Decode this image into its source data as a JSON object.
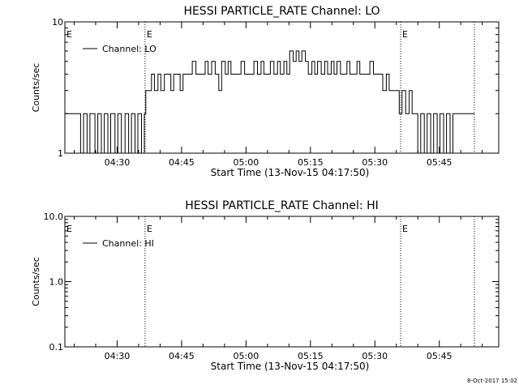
{
  "footer_stamp": "8-Oct-2017 15:02",
  "chart_data": [
    {
      "type": "line",
      "title": "HESSI PARTICLE_RATE Channel: LO",
      "xlabel": "Start Time (13-Nov-15 04:17:50)",
      "ylabel": "Counts/sec",
      "yscale": "log",
      "xlim": [
        "04:17:50",
        "05:58:50"
      ],
      "ylim": [
        1,
        10
      ],
      "x_ticks": [
        "04:30",
        "04:45",
        "05:00",
        "05:15",
        "05:30",
        "05:45"
      ],
      "y_ticks": [
        {
          "value": 10,
          "label": "10"
        },
        {
          "value": 1,
          "label": "1"
        }
      ],
      "legend": {
        "position": "top-left",
        "entries": [
          "Channel: LO"
        ]
      },
      "event_markers": [
        {
          "time": "04:36:30",
          "label": "E"
        },
        {
          "time": "05:36:00",
          "label": "E"
        },
        {
          "time": "05:53:10",
          "label": ""
        }
      ],
      "series": [
        {
          "name": "Channel: LO",
          "points": [
            [
              "04:17:50",
              2
            ],
            [
              "04:21:00",
              2
            ],
            [
              "04:21:30",
              1
            ],
            [
              "04:22:10",
              2
            ],
            [
              "04:23:00",
              1
            ],
            [
              "04:23:40",
              2
            ],
            [
              "04:24:50",
              1
            ],
            [
              "04:25:30",
              2
            ],
            [
              "04:26:20",
              1
            ],
            [
              "04:27:00",
              2
            ],
            [
              "04:27:50",
              1
            ],
            [
              "04:28:30",
              2
            ],
            [
              "04:29:30",
              1
            ],
            [
              "04:30:10",
              2
            ],
            [
              "04:31:00",
              1
            ],
            [
              "04:31:50",
              2
            ],
            [
              "04:32:40",
              1
            ],
            [
              "04:33:20",
              2
            ],
            [
              "04:34:10",
              1
            ],
            [
              "04:34:50",
              2
            ],
            [
              "04:35:40",
              1
            ],
            [
              "04:36:20",
              2
            ],
            [
              "04:36:40",
              3
            ],
            [
              "04:37:40",
              3
            ],
            [
              "04:38:00",
              4
            ],
            [
              "04:38:40",
              3
            ],
            [
              "04:39:30",
              4
            ],
            [
              "04:40:10",
              3
            ],
            [
              "04:41:00",
              4
            ],
            [
              "04:41:50",
              4
            ],
            [
              "04:42:30",
              3
            ],
            [
              "04:43:10",
              4
            ],
            [
              "04:44:00",
              4
            ],
            [
              "04:44:40",
              3
            ],
            [
              "04:45:20",
              4
            ],
            [
              "04:46:10",
              4
            ],
            [
              "04:46:50",
              4
            ],
            [
              "04:47:30",
              5
            ],
            [
              "04:48:20",
              4
            ],
            [
              "04:49:00",
              4
            ],
            [
              "04:49:50",
              4
            ],
            [
              "04:50:30",
              5
            ],
            [
              "04:51:10",
              4
            ],
            [
              "04:52:00",
              5
            ],
            [
              "04:52:50",
              4
            ],
            [
              "04:53:40",
              3
            ],
            [
              "04:54:20",
              5
            ],
            [
              "04:55:10",
              4
            ],
            [
              "04:55:50",
              5
            ],
            [
              "04:56:30",
              4
            ],
            [
              "04:57:20",
              4
            ],
            [
              "04:58:10",
              4
            ],
            [
              "04:58:50",
              5
            ],
            [
              "04:59:40",
              4
            ],
            [
              "05:00:30",
              4
            ],
            [
              "05:01:10",
              4
            ],
            [
              "05:01:50",
              5
            ],
            [
              "05:02:40",
              4
            ],
            [
              "05:03:30",
              5
            ],
            [
              "05:04:10",
              4
            ],
            [
              "05:05:00",
              4
            ],
            [
              "05:05:40",
              5
            ],
            [
              "05:06:30",
              4
            ],
            [
              "05:07:20",
              5
            ],
            [
              "05:08:00",
              4
            ],
            [
              "05:08:50",
              5
            ],
            [
              "05:09:30",
              4
            ],
            [
              "05:10:10",
              6
            ],
            [
              "05:11:00",
              5
            ],
            [
              "05:11:40",
              6
            ],
            [
              "05:12:20",
              5
            ],
            [
              "05:13:00",
              6
            ],
            [
              "05:13:50",
              5
            ],
            [
              "05:14:30",
              4
            ],
            [
              "05:15:20",
              5
            ],
            [
              "05:16:00",
              4
            ],
            [
              "05:16:40",
              5
            ],
            [
              "05:17:30",
              4
            ],
            [
              "05:18:20",
              5
            ],
            [
              "05:19:00",
              4
            ],
            [
              "05:19:50",
              5
            ],
            [
              "05:20:30",
              4
            ],
            [
              "05:21:10",
              5
            ],
            [
              "05:22:00",
              4
            ],
            [
              "05:22:50",
              4
            ],
            [
              "05:23:30",
              5
            ],
            [
              "05:24:10",
              4
            ],
            [
              "05:25:00",
              4
            ],
            [
              "05:25:50",
              5
            ],
            [
              "05:26:30",
              4
            ],
            [
              "05:27:20",
              4
            ],
            [
              "05:28:10",
              4
            ],
            [
              "05:28:50",
              5
            ],
            [
              "05:29:40",
              4
            ],
            [
              "05:30:20",
              4
            ],
            [
              "05:31:10",
              4
            ],
            [
              "05:31:50",
              3
            ],
            [
              "05:32:40",
              4
            ],
            [
              "05:33:20",
              3
            ],
            [
              "05:34:10",
              3
            ],
            [
              "05:34:50",
              3
            ],
            [
              "05:35:40",
              2
            ],
            [
              "05:36:20",
              3
            ],
            [
              "05:37:10",
              2
            ],
            [
              "05:38:00",
              3
            ],
            [
              "05:38:40",
              2
            ],
            [
              "05:39:20",
              2
            ],
            [
              "05:40:00",
              1
            ],
            [
              "05:40:40",
              2
            ],
            [
              "05:41:30",
              1
            ],
            [
              "05:42:10",
              2
            ],
            [
              "05:43:00",
              1
            ],
            [
              "05:43:40",
              2
            ],
            [
              "05:44:30",
              1
            ],
            [
              "05:45:10",
              2
            ],
            [
              "05:46:00",
              1
            ],
            [
              "05:46:40",
              2
            ],
            [
              "05:47:30",
              1
            ],
            [
              "05:48:10",
              2
            ],
            [
              "05:49:00",
              2
            ],
            [
              "05:50:00",
              2
            ],
            [
              "05:51:30",
              2
            ],
            [
              "05:53:10",
              2
            ]
          ]
        }
      ]
    },
    {
      "type": "line",
      "title": "HESSI PARTICLE_RATE Channel: HI",
      "xlabel": "Start Time (13-Nov-15 04:17:50)",
      "ylabel": "Counts/sec",
      "yscale": "log",
      "xlim": [
        "04:17:50",
        "05:58:50"
      ],
      "ylim": [
        0.1,
        10
      ],
      "x_ticks": [
        "04:30",
        "04:45",
        "05:00",
        "05:15",
        "05:30",
        "05:45"
      ],
      "y_ticks": [
        {
          "value": 10,
          "label": "10.0"
        },
        {
          "value": 1,
          "label": "1.0"
        },
        {
          "value": 0.1,
          "label": "0.1"
        }
      ],
      "legend": {
        "position": "top-left",
        "entries": [
          "Channel: HI"
        ]
      },
      "event_markers": [
        {
          "time": "04:36:30",
          "label": "E"
        },
        {
          "time": "05:36:00",
          "label": "E"
        },
        {
          "time": "05:53:10",
          "label": ""
        }
      ],
      "series": [
        {
          "name": "Channel: HI",
          "points": []
        }
      ]
    }
  ]
}
